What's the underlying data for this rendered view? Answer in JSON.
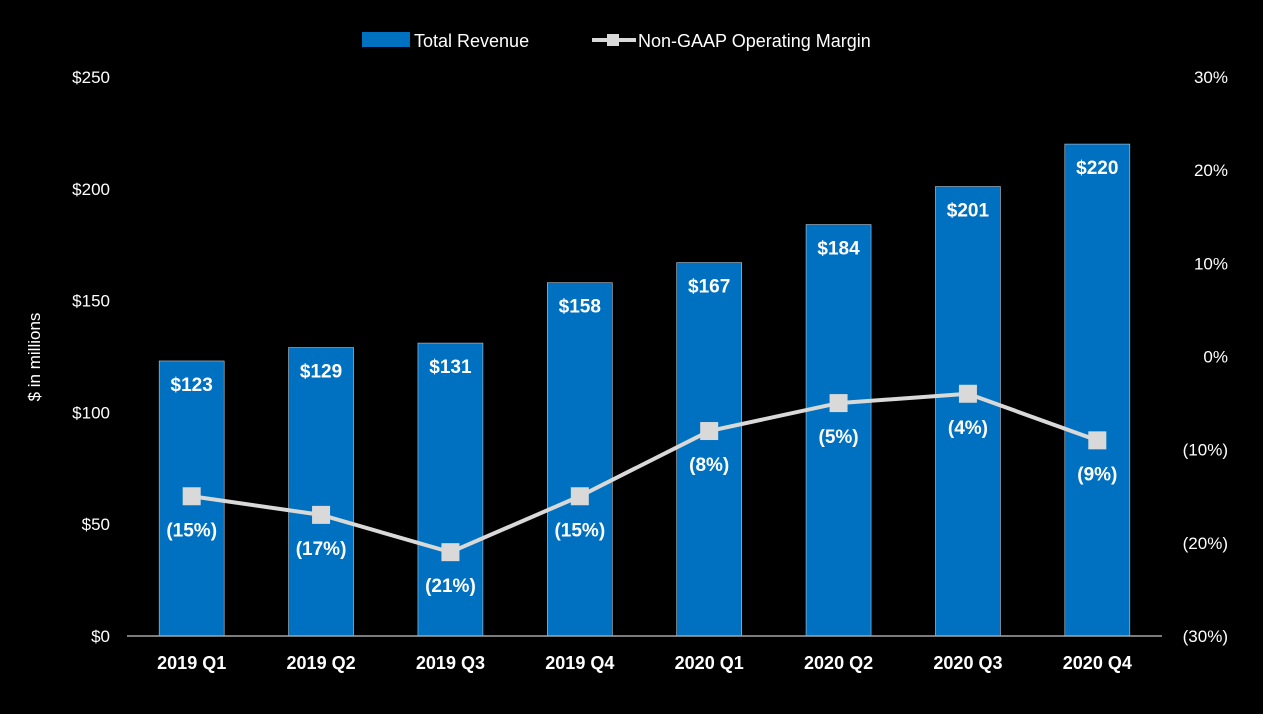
{
  "chart_data": {
    "type": "bar+line",
    "title": "",
    "categories": [
      "2019 Q1",
      "2019 Q2",
      "2019 Q3",
      "2019 Q4",
      "2020 Q1",
      "2020 Q2",
      "2020 Q3",
      "2020 Q4"
    ],
    "series": [
      {
        "name": "Total Revenue",
        "type": "bar",
        "axis": "left",
        "values": [
          123,
          129,
          131,
          158,
          167,
          184,
          201,
          220
        ],
        "labels": [
          "$123",
          "$129",
          "$131",
          "$158",
          "$167",
          "$184",
          "$201",
          "$220"
        ],
        "color": "#0070C0"
      },
      {
        "name": "Non-GAAP Operating Margin",
        "type": "line",
        "axis": "right",
        "values": [
          -15,
          -17,
          -21,
          -15,
          -8,
          -5,
          -4,
          -9
        ],
        "labels": [
          "(15%)",
          "(17%)",
          "(21%)",
          "(15%)",
          "(8%)",
          "(5%)",
          "(4%)",
          "(9%)"
        ],
        "color": "#D9D9D9"
      }
    ],
    "ylabel": "$ in millions",
    "ylim": [
      0,
      250
    ],
    "y_ticks": [
      "$0",
      "$50",
      "$100",
      "$150",
      "$200",
      "$250"
    ],
    "y2lim": [
      -30,
      30
    ],
    "y2_ticks": [
      "(30%)",
      "(20%)",
      "(10%)",
      "0%",
      "10%",
      "20%",
      "30%"
    ],
    "grid": false,
    "legend": "top-center",
    "background": "#000000"
  }
}
